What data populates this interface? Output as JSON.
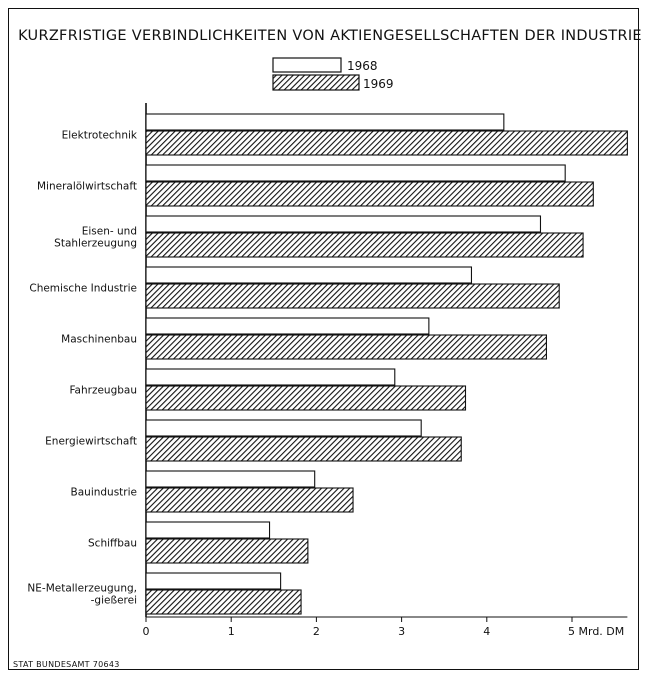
{
  "source_note": "STAT BUNDESAMT 70643",
  "colors": {
    "ink": "#111111",
    "bar_1968_fill": "#ffffff",
    "bar_1969_fill": "hatched"
  },
  "chart_data": {
    "type": "bar",
    "orientation": "horizontal",
    "title": "KURZFRISTIGE VERBINDLICHKEITEN VON AKTIENGESELLSCHAFTEN DER INDUSTRIE",
    "categories": [
      [
        "Elektrotechnik"
      ],
      [
        "Mineralölwirtschaft"
      ],
      [
        "Eisen- und",
        "Stahlerzeugung"
      ],
      [
        "Chemische Industrie"
      ],
      [
        "Maschinenbau"
      ],
      [
        "Fahrzeugbau"
      ],
      [
        "Energiewirtschaft"
      ],
      [
        "Bauindustrie"
      ],
      [
        "Schiffbau"
      ],
      [
        "NE-Metallerzeugung,",
        "-gießerei"
      ]
    ],
    "series": [
      {
        "name": "1968",
        "pattern": "white",
        "values": [
          4.2,
          4.92,
          4.63,
          3.82,
          3.32,
          2.92,
          3.23,
          1.98,
          1.45,
          1.58
        ]
      },
      {
        "name": "1969",
        "pattern": "hatched",
        "values": [
          5.65,
          5.25,
          5.13,
          4.85,
          4.7,
          3.75,
          3.7,
          2.43,
          1.9,
          1.82
        ]
      }
    ],
    "xlim": [
      0,
      5.65
    ],
    "x_ticks": [
      {
        "value": 0,
        "label": "0"
      },
      {
        "value": 1,
        "label": "1"
      },
      {
        "value": 2,
        "label": "2"
      },
      {
        "value": 3,
        "label": "3"
      },
      {
        "value": 4,
        "label": "4"
      },
      {
        "value": 5,
        "label": "5 Mrd. DM"
      }
    ],
    "legend_position": "top-center",
    "grid": false
  }
}
